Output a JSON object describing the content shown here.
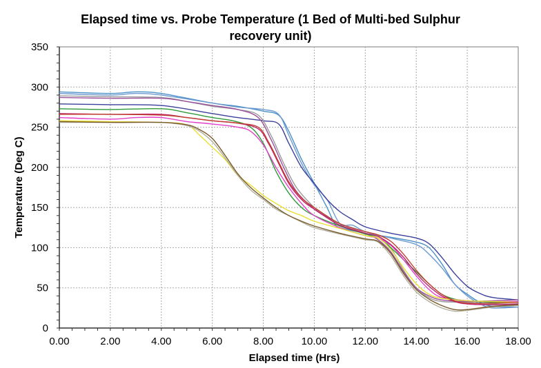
{
  "chart_data": {
    "type": "line",
    "title_line1": "Elapsed time vs. Probe Temperature (1 Bed of Multi-bed Sulphur",
    "title_line2": "recovery unit)",
    "xlabel": "Elapsed time (Hrs)",
    "ylabel": "Temperature (Deg C)",
    "xlim": [
      0,
      18
    ],
    "ylim": [
      0,
      350
    ],
    "x_ticks": [
      "0.00",
      "2.00",
      "4.00",
      "6.00",
      "8.00",
      "10.00",
      "12.00",
      "14.00",
      "16.00",
      "18.00"
    ],
    "y_ticks": [
      "0",
      "50",
      "100",
      "150",
      "200",
      "250",
      "300",
      "350"
    ],
    "grid": true,
    "legend": "none",
    "series": [
      {
        "color": "#4a90c8",
        "points": [
          [
            0,
            294
          ],
          [
            2,
            292
          ],
          [
            3,
            294
          ],
          [
            4,
            292
          ],
          [
            6,
            280
          ],
          [
            7,
            276
          ],
          [
            8,
            270
          ],
          [
            8.6,
            265
          ],
          [
            9,
            245
          ],
          [
            9.5,
            210
          ],
          [
            10,
            180
          ],
          [
            10.5,
            150
          ],
          [
            10.8,
            130
          ],
          [
            11,
            125
          ],
          [
            12,
            118
          ],
          [
            13,
            113
          ],
          [
            14,
            107
          ],
          [
            14.5,
            100
          ],
          [
            15,
            80
          ],
          [
            15.5,
            55
          ],
          [
            16,
            42
          ],
          [
            16.5,
            32
          ],
          [
            17,
            27
          ],
          [
            18,
            26
          ]
        ]
      },
      {
        "color": "#6c9ad0",
        "points": [
          [
            0,
            292
          ],
          [
            2,
            290
          ],
          [
            3,
            292
          ],
          [
            4,
            290
          ],
          [
            6,
            280
          ],
          [
            7,
            275
          ],
          [
            8,
            272
          ],
          [
            8.6,
            266
          ],
          [
            9,
            240
          ],
          [
            9.5,
            205
          ],
          [
            10,
            178
          ],
          [
            10.5,
            160
          ],
          [
            11,
            130
          ],
          [
            11.5,
            128
          ],
          [
            12,
            120
          ],
          [
            13,
            112
          ],
          [
            14,
            104
          ],
          [
            14.5,
            92
          ],
          [
            15,
            75
          ],
          [
            15.5,
            55
          ],
          [
            16,
            40
          ],
          [
            16.5,
            30
          ],
          [
            17,
            25
          ],
          [
            18,
            26
          ]
        ]
      },
      {
        "color": "#3a3f9a",
        "points": [
          [
            0,
            279
          ],
          [
            2,
            278
          ],
          [
            4,
            277
          ],
          [
            6,
            267
          ],
          [
            7,
            262
          ],
          [
            8,
            258
          ],
          [
            8.6,
            254
          ],
          [
            9,
            230
          ],
          [
            9.5,
            200
          ],
          [
            10,
            180
          ],
          [
            10.5,
            160
          ],
          [
            11,
            145
          ],
          [
            11.5,
            135
          ],
          [
            12,
            126
          ],
          [
            13,
            118
          ],
          [
            14,
            112
          ],
          [
            14.5,
            105
          ],
          [
            15,
            88
          ],
          [
            15.5,
            68
          ],
          [
            16,
            52
          ],
          [
            16.5,
            43
          ],
          [
            17,
            38
          ],
          [
            18,
            35
          ]
        ]
      },
      {
        "color": "#9a9a9a",
        "points": [
          [
            0,
            289
          ],
          [
            2,
            288
          ],
          [
            4,
            287
          ],
          [
            5,
            282
          ],
          [
            6,
            276
          ],
          [
            7,
            272
          ],
          [
            7.8,
            265
          ],
          [
            8.3,
            240
          ],
          [
            8.8,
            205
          ],
          [
            9.3,
            175
          ],
          [
            10,
            150
          ],
          [
            10.5,
            138
          ],
          [
            11,
            130
          ],
          [
            12,
            120
          ],
          [
            12.5,
            115
          ],
          [
            13,
            100
          ],
          [
            13.5,
            72
          ],
          [
            14,
            50
          ],
          [
            14.5,
            38
          ],
          [
            15,
            33
          ],
          [
            16,
            32
          ],
          [
            17,
            30
          ],
          [
            18,
            30
          ]
        ]
      },
      {
        "color": "#9b4f9b",
        "points": [
          [
            0,
            287
          ],
          [
            2,
            286
          ],
          [
            4,
            286
          ],
          [
            5,
            282
          ],
          [
            6,
            277
          ],
          [
            7,
            272
          ],
          [
            7.8,
            262
          ],
          [
            8.3,
            235
          ],
          [
            8.8,
            200
          ],
          [
            9.3,
            170
          ],
          [
            10,
            148
          ],
          [
            10.5,
            138
          ],
          [
            11,
            128
          ],
          [
            12,
            118
          ],
          [
            12.5,
            110
          ],
          [
            13,
            95
          ],
          [
            13.5,
            70
          ],
          [
            14,
            50
          ],
          [
            14.5,
            40
          ],
          [
            15,
            35
          ],
          [
            16,
            33
          ],
          [
            17,
            34
          ],
          [
            18,
            35
          ]
        ]
      },
      {
        "color": "#2e9a3a",
        "points": [
          [
            0,
            273
          ],
          [
            2,
            272
          ],
          [
            4,
            273
          ],
          [
            5,
            268
          ],
          [
            6,
            262
          ],
          [
            6.8,
            258
          ],
          [
            7.5,
            250
          ],
          [
            8,
            230
          ],
          [
            8.5,
            195
          ],
          [
            9,
            168
          ],
          [
            9.5,
            150
          ],
          [
            10,
            140
          ],
          [
            11,
            127
          ],
          [
            12,
            117
          ],
          [
            12.5,
            112
          ],
          [
            13,
            100
          ],
          [
            13.5,
            85
          ],
          [
            14,
            70
          ],
          [
            14.5,
            55
          ],
          [
            15,
            42
          ],
          [
            15.5,
            36
          ],
          [
            16,
            34
          ],
          [
            17,
            32
          ],
          [
            18,
            32
          ]
        ]
      },
      {
        "color": "#e040c8",
        "points": [
          [
            0,
            262
          ],
          [
            2,
            260
          ],
          [
            3,
            262
          ],
          [
            4,
            262
          ],
          [
            5,
            257
          ],
          [
            6,
            254
          ],
          [
            7,
            250
          ],
          [
            7.5,
            245
          ],
          [
            8,
            228
          ],
          [
            8.5,
            200
          ],
          [
            9,
            175
          ],
          [
            9.5,
            155
          ],
          [
            10,
            140
          ],
          [
            11,
            125
          ],
          [
            12,
            115
          ],
          [
            12.5,
            112
          ],
          [
            13,
            103
          ],
          [
            13.5,
            85
          ],
          [
            14,
            65
          ],
          [
            14.5,
            48
          ],
          [
            15,
            38
          ],
          [
            16,
            34
          ],
          [
            17,
            33
          ],
          [
            18,
            33
          ]
        ]
      },
      {
        "color": "#c0206a",
        "points": [
          [
            0,
            267
          ],
          [
            2,
            266
          ],
          [
            4,
            266
          ],
          [
            5,
            262
          ],
          [
            6,
            258
          ],
          [
            7,
            255
          ],
          [
            7.8,
            248
          ],
          [
            8.2,
            230
          ],
          [
            8.6,
            205
          ],
          [
            9,
            180
          ],
          [
            9.5,
            160
          ],
          [
            10,
            148
          ],
          [
            11,
            128
          ],
          [
            12,
            118
          ],
          [
            12.5,
            114
          ],
          [
            13,
            104
          ],
          [
            13.5,
            88
          ],
          [
            14,
            68
          ],
          [
            14.5,
            52
          ],
          [
            15,
            40
          ],
          [
            15.5,
            33
          ],
          [
            16,
            30
          ],
          [
            17,
            29
          ],
          [
            18,
            30
          ]
        ]
      },
      {
        "color": "#e8e030",
        "points": [
          [
            0,
            258
          ],
          [
            2,
            257
          ],
          [
            4,
            256
          ],
          [
            5,
            253
          ],
          [
            5.5,
            240
          ],
          [
            6,
            225
          ],
          [
            6.5,
            210
          ],
          [
            7,
            190
          ],
          [
            7.5,
            178
          ],
          [
            8,
            165
          ],
          [
            8.5,
            155
          ],
          [
            9,
            146
          ],
          [
            9.5,
            140
          ],
          [
            10,
            133
          ],
          [
            11,
            124
          ],
          [
            12,
            115
          ],
          [
            12.5,
            112
          ],
          [
            13,
            98
          ],
          [
            13.5,
            75
          ],
          [
            14,
            55
          ],
          [
            14.5,
            42
          ],
          [
            15,
            37
          ],
          [
            16,
            34
          ],
          [
            17,
            33
          ],
          [
            18,
            32
          ]
        ]
      },
      {
        "color": "#b0b0a0",
        "points": [
          [
            0,
            256
          ],
          [
            2,
            256
          ],
          [
            4,
            256
          ],
          [
            5,
            252
          ],
          [
            5.5,
            245
          ],
          [
            6,
            232
          ],
          [
            6.5,
            212
          ],
          [
            7,
            190
          ],
          [
            7.5,
            172
          ],
          [
            8,
            160
          ],
          [
            8.5,
            148
          ],
          [
            9,
            140
          ],
          [
            9.5,
            132
          ],
          [
            10,
            125
          ],
          [
            11,
            117
          ],
          [
            12,
            110
          ],
          [
            12.5,
            107
          ],
          [
            13,
            90
          ],
          [
            13.5,
            65
          ],
          [
            14,
            45
          ],
          [
            14.5,
            33
          ],
          [
            15,
            25
          ],
          [
            15.5,
            21
          ],
          [
            16,
            22
          ],
          [
            17,
            26
          ],
          [
            18,
            28
          ]
        ]
      },
      {
        "color": "#7a5a2a",
        "points": [
          [
            0,
            257
          ],
          [
            2,
            256
          ],
          [
            4,
            256
          ],
          [
            5,
            253
          ],
          [
            5.5,
            247
          ],
          [
            6,
            236
          ],
          [
            6.5,
            215
          ],
          [
            7,
            192
          ],
          [
            7.5,
            175
          ],
          [
            8,
            162
          ],
          [
            8.5,
            150
          ],
          [
            9,
            140
          ],
          [
            9.5,
            133
          ],
          [
            10,
            127
          ],
          [
            11,
            118
          ],
          [
            12,
            111
          ],
          [
            12.5,
            108
          ],
          [
            13,
            93
          ],
          [
            13.5,
            68
          ],
          [
            14,
            48
          ],
          [
            14.5,
            36
          ],
          [
            15,
            28
          ],
          [
            15.5,
            23
          ],
          [
            16,
            23
          ],
          [
            17,
            27
          ],
          [
            18,
            29
          ]
        ]
      },
      {
        "color": "#c04030",
        "points": [
          [
            0,
            266
          ],
          [
            2,
            266
          ],
          [
            4,
            265
          ],
          [
            5,
            262
          ],
          [
            6,
            258
          ],
          [
            7,
            255
          ],
          [
            7.8,
            250
          ],
          [
            8.2,
            232
          ],
          [
            8.6,
            207
          ],
          [
            9,
            182
          ],
          [
            9.5,
            162
          ],
          [
            10,
            150
          ],
          [
            11,
            130
          ],
          [
            12,
            120
          ],
          [
            12.5,
            116
          ],
          [
            13,
            108
          ],
          [
            13.5,
            92
          ],
          [
            14,
            72
          ],
          [
            14.5,
            55
          ],
          [
            15,
            42
          ],
          [
            15.5,
            34
          ],
          [
            16,
            31
          ],
          [
            17,
            31
          ],
          [
            18,
            32
          ]
        ]
      }
    ]
  }
}
